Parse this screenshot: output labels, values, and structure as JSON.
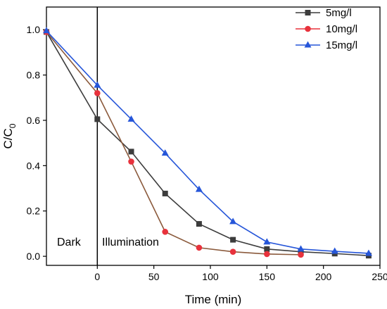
{
  "chart_data": {
    "type": "line",
    "xlabel": "Time (min)",
    "ylabel": {
      "main": "C/C",
      "sub": "0"
    },
    "xlim": [
      -45,
      250
    ],
    "ylim": [
      -0.04,
      1.1
    ],
    "x_ticks": [
      0,
      50,
      100,
      150,
      200,
      250
    ],
    "y_ticks": [
      0.0,
      0.2,
      0.4,
      0.6,
      0.8,
      1.0
    ],
    "x_tick_labels": [
      "0",
      "50",
      "100",
      "150",
      "200",
      "250"
    ],
    "y_tick_labels": [
      "0.0",
      "0.2",
      "0.4",
      "0.6",
      "0.8",
      "1.0"
    ],
    "grid": false,
    "legend_position": "top-right",
    "divider_x": 0,
    "annotations": {
      "left": "Dark",
      "right": "Illumination"
    },
    "series": [
      {
        "name": "5mg/l",
        "color": "#3c3c3c",
        "marker": "square",
        "x": [
          -45,
          0,
          30,
          60,
          90,
          120,
          150,
          180,
          210,
          240
        ],
        "y": [
          0.99,
          0.605,
          0.462,
          0.277,
          0.143,
          0.073,
          0.032,
          0.02,
          0.012,
          0.003
        ]
      },
      {
        "name": "10mg/l",
        "color": "#e8323c",
        "line_color": "#8b5a3c",
        "marker": "circle",
        "x": [
          -45,
          0,
          30,
          60,
          90,
          120,
          150,
          180
        ],
        "y": [
          0.99,
          0.72,
          0.418,
          0.108,
          0.038,
          0.02,
          0.01,
          0.007
        ]
      },
      {
        "name": "15mg/l",
        "color": "#2656d9",
        "marker": "triangle",
        "x": [
          -45,
          0,
          30,
          60,
          90,
          120,
          150,
          180,
          210,
          240
        ],
        "y": [
          0.995,
          0.755,
          0.605,
          0.455,
          0.295,
          0.153,
          0.063,
          0.032,
          0.022,
          0.013
        ]
      }
    ]
  }
}
